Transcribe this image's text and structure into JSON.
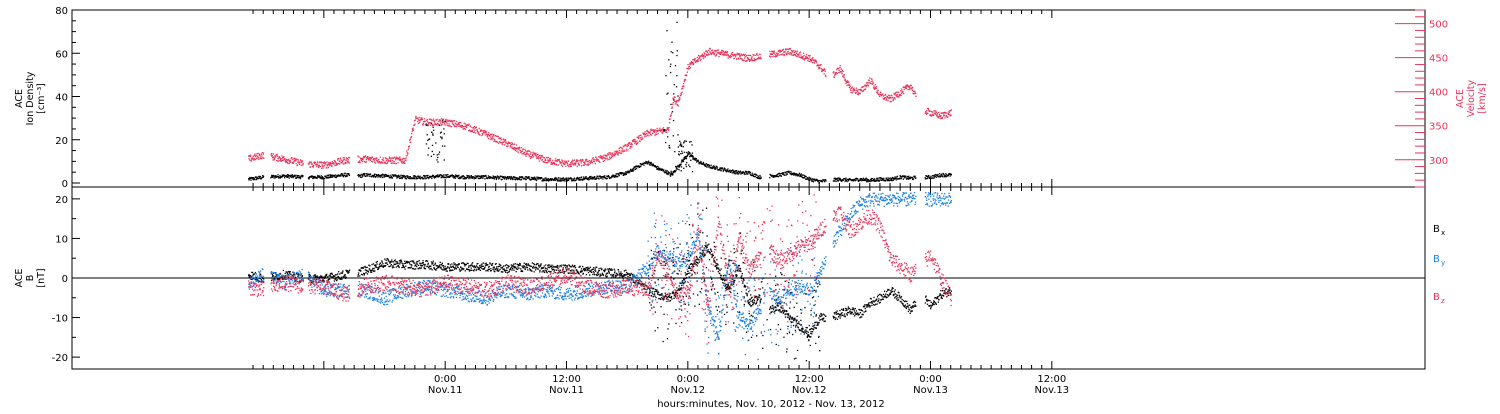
{
  "chart_data": [
    {
      "type": "scatter",
      "panel": "top",
      "ylabel_left": [
        "ACE",
        "Ion Density",
        "[cm⁻³]"
      ],
      "ylabel_right": [
        "ACE",
        "Velocity",
        "[km/s]"
      ],
      "ylim_left": [
        0,
        80
      ],
      "yticks_left": [
        0,
        20,
        40,
        60,
        80
      ],
      "ylim_right": [
        260,
        520
      ],
      "yticks_right": [
        300,
        350,
        400,
        450,
        500
      ],
      "x_unit": "hours since 00:00 Nov.10, 2012",
      "xlim": [
        4.5,
        75.2
      ],
      "gaps": [
        [
          6.0,
          6.7
        ],
        [
          9.9,
          10.4
        ],
        [
          14.5,
          15.3
        ],
        [
          55.2,
          56.0
        ],
        [
          61.6,
          62.3
        ],
        [
          70.5,
          71.4
        ]
      ],
      "series": [
        {
          "color": "#000000",
          "axis": "left",
          "x": [
            4.5,
            6,
            8,
            10,
            12,
            14,
            15.5,
            16,
            18,
            20,
            22,
            24,
            26,
            28,
            30,
            32,
            34,
            36,
            38,
            40,
            42,
            43,
            44,
            45,
            46,
            46.2,
            46.5,
            47,
            48,
            49,
            50,
            51,
            52,
            53,
            54,
            55,
            56,
            57,
            58,
            59,
            60,
            61,
            62,
            63,
            64,
            65,
            66,
            67,
            68,
            69,
            70,
            71,
            72,
            73,
            74
          ],
          "y": [
            2,
            3,
            3.5,
            3,
            3,
            4,
            3.5,
            4,
            3.5,
            3,
            3,
            3.5,
            3,
            3,
            2.5,
            2.5,
            2,
            2,
            2.5,
            3,
            5,
            8,
            10,
            7,
            5,
            4,
            5,
            8,
            14,
            10,
            8,
            7,
            6,
            5,
            5,
            3,
            3.5,
            4,
            5,
            4,
            2,
            1,
            1.5,
            2,
            1.5,
            2,
            1.5,
            2,
            2,
            3,
            2.5,
            3,
            3,
            4,
            4
          ]
        },
        {
          "color": "#e8345a",
          "axis": "right",
          "x": [
            4.5,
            6,
            8,
            10,
            12,
            14,
            16,
            18,
            20,
            21,
            22,
            24,
            26,
            28,
            30,
            32,
            34,
            36,
            38,
            40,
            42,
            44,
            46,
            46.5,
            47,
            48,
            50,
            52,
            54,
            56,
            58,
            60,
            61,
            62,
            63,
            64,
            65,
            66,
            67,
            68,
            69,
            70,
            71,
            72,
            73,
            74
          ],
          "y": [
            302,
            308,
            302,
            295,
            293,
            300,
            302,
            300,
            300,
            360,
            356,
            356,
            350,
            338,
            325,
            310,
            300,
            295,
            297,
            305,
            320,
            340,
            345,
            390,
            385,
            438,
            460,
            455,
            450,
            455,
            460,
            450,
            438,
            420,
            435,
            405,
            400,
            418,
            395,
            390,
            400,
            410,
            375,
            370,
            365,
            370
          ]
        }
      ],
      "scatter_y": [
        [
          45.5,
          47,
          2,
          75
        ],
        [
          47,
          48.5,
          5,
          20
        ],
        [
          22,
          24,
          10,
          30
        ]
      ]
    },
    {
      "type": "scatter",
      "panel": "bottom",
      "ylabel_left": [
        "ACE",
        "B",
        "[nT]"
      ],
      "ylim_left": [
        -23,
        23
      ],
      "yticks_left": [
        -20,
        -10,
        0,
        10,
        20
      ],
      "zero_line": true,
      "x_unit": "hours since 00:00 Nov.10, 2012",
      "xlim": [
        4.5,
        75.2
      ],
      "legend": [
        "B",
        "B",
        "B"
      ],
      "legend_sub": [
        "x",
        "y",
        "z"
      ],
      "series": [
        {
          "color": "#000000",
          "x": [
            4.5,
            6,
            8,
            10,
            12,
            14,
            16,
            18,
            20,
            22,
            24,
            26,
            28,
            30,
            32,
            34,
            36,
            38,
            40,
            42,
            44,
            46,
            47,
            48,
            49,
            50,
            51,
            52,
            53,
            54,
            55,
            56,
            57,
            58,
            59,
            60,
            61,
            62,
            63,
            64,
            65,
            66,
            67,
            68,
            69,
            70,
            71,
            72,
            73,
            74
          ],
          "y": [
            1,
            0,
            1,
            0,
            0,
            1,
            2,
            4,
            3.5,
            3.5,
            3,
            3,
            3,
            2.5,
            3,
            2.5,
            2.5,
            2,
            1.5,
            1,
            -3,
            -5,
            -3,
            2,
            5,
            8,
            2,
            -3,
            3,
            -6,
            -5,
            -8,
            -7,
            -10,
            -12,
            -14,
            -10,
            -10,
            -9,
            -8,
            -9,
            -6,
            -5,
            -3,
            -5,
            -8,
            -4,
            -7,
            -4,
            -3
          ]
        },
        {
          "color": "#1a7fe0",
          "x": [
            4.5,
            6,
            8,
            10,
            12,
            14,
            16,
            18,
            20,
            22,
            24,
            26,
            28,
            30,
            32,
            34,
            36,
            38,
            40,
            42,
            44,
            45,
            46,
            47,
            48,
            49,
            50,
            51,
            52,
            53,
            54,
            55,
            56,
            57,
            58,
            59,
            60,
            61,
            62,
            63,
            64,
            65,
            66,
            67,
            68,
            69,
            70,
            71,
            72,
            73,
            74
          ],
          "y": [
            -1,
            1,
            -1,
            1,
            -3,
            -3,
            -3,
            -5,
            -3,
            -2,
            -3,
            -4,
            -5,
            -3,
            -4,
            -3,
            -4,
            -3,
            -2,
            -2,
            3,
            7,
            6,
            4,
            5,
            12,
            -8,
            -15,
            5,
            -10,
            -12,
            -8,
            -4,
            -5,
            -3,
            -2,
            -3,
            1,
            8,
            12,
            16,
            19,
            20,
            20,
            20,
            20,
            20,
            20,
            20,
            20,
            20
          ]
        },
        {
          "color": "#e8345a",
          "x": [
            4.5,
            6,
            8,
            10,
            12,
            14,
            16,
            18,
            20,
            22,
            24,
            26,
            28,
            30,
            32,
            34,
            36,
            38,
            40,
            42,
            44,
            45,
            46,
            47,
            48,
            49,
            50,
            51,
            52,
            53,
            54,
            55,
            56,
            57,
            58,
            59,
            60,
            61,
            62,
            63,
            64,
            65,
            66,
            67,
            68,
            69,
            70,
            71,
            72,
            73,
            74
          ],
          "y": [
            -2,
            -3,
            -1,
            -2,
            -2,
            -4,
            -2,
            -1,
            -2,
            -3,
            -1,
            -2,
            -3,
            -1,
            -2,
            -1,
            1,
            -2,
            -3,
            -2,
            -3,
            6,
            2,
            -5,
            -3,
            10,
            -8,
            15,
            -3,
            10,
            2,
            5,
            8,
            4,
            6,
            8,
            9,
            12,
            15,
            17,
            12,
            14,
            16,
            13,
            5,
            3,
            1,
            3,
            6,
            0,
            -5
          ]
        }
      ]
    }
  ],
  "x_axis": {
    "ticks": [
      {
        "x": 24,
        "time": "0:00",
        "date": "Nov.11"
      },
      {
        "x": 36,
        "time": "12:00",
        "date": "Nov.11"
      },
      {
        "x": 48,
        "time": "0:00",
        "date": "Nov.12"
      },
      {
        "x": 60,
        "time": "12:00",
        "date": "Nov.12"
      },
      {
        "x": 72,
        "time": "0:00",
        "date": "Nov.13"
      },
      {
        "x": 84,
        "time": "12:00",
        "date": "Nov.13"
      }
    ],
    "minor_step": 1,
    "xlabel": "hours:minutes, Nov. 10, 2012 - Nov. 13, 2012"
  },
  "colors": {
    "frame": "#000000",
    "bx": "#000000",
    "by": "#1a7fe0",
    "bz": "#e8345a",
    "density": "#000000",
    "velocity": "#e8345a"
  }
}
